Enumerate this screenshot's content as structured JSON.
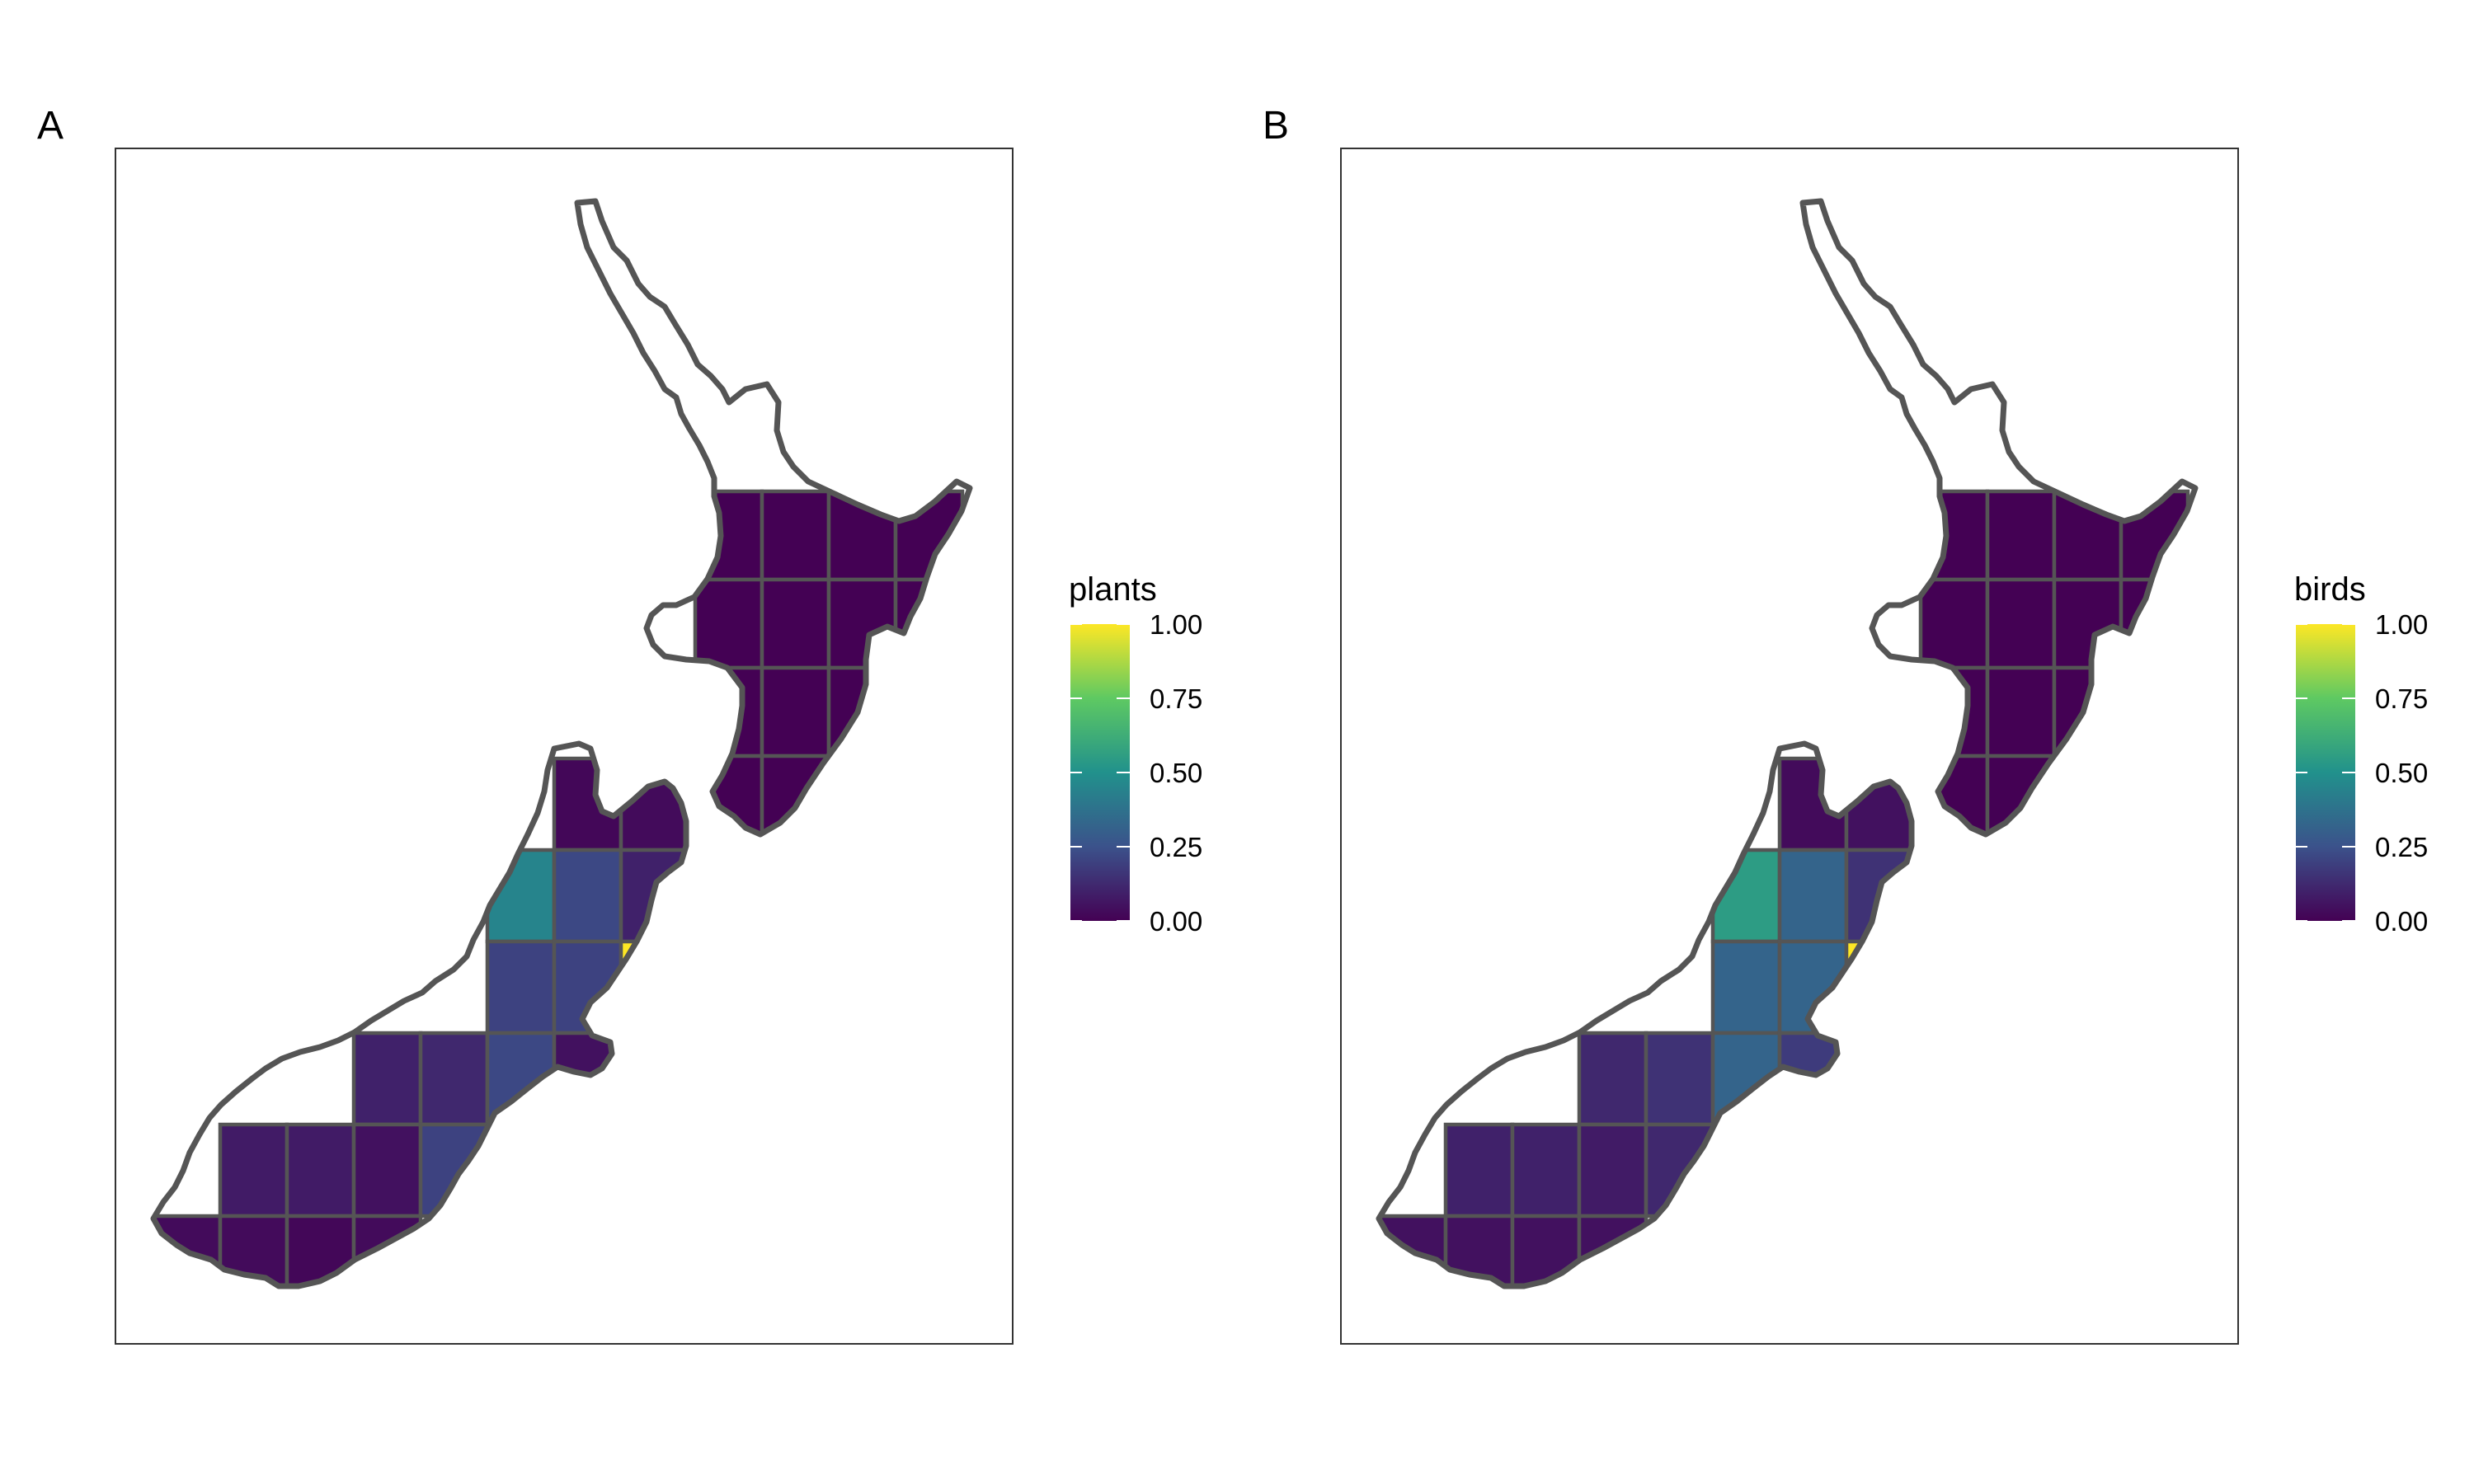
{
  "panels": [
    {
      "tag": "A",
      "legend": {
        "title": "plants",
        "ticks": [
          "1.00",
          "0.75",
          "0.50",
          "0.25",
          "0.00"
        ],
        "tick_values": [
          1.0,
          0.75,
          0.5,
          0.25,
          0.0
        ],
        "colormap": "viridis"
      },
      "cells": [
        {
          "island": "north",
          "row": 0,
          "col": 0,
          "value": 0.0
        },
        {
          "island": "north",
          "row": 0,
          "col": 1,
          "value": 0.0
        },
        {
          "island": "north",
          "row": 0,
          "col": 2,
          "value": 0.0
        },
        {
          "island": "north",
          "row": 0,
          "col": 3,
          "value": 0.0
        },
        {
          "island": "north",
          "row": 1,
          "col": 0,
          "value": 0.0
        },
        {
          "island": "north",
          "row": 1,
          "col": 1,
          "value": 0.0
        },
        {
          "island": "north",
          "row": 1,
          "col": 2,
          "value": 0.0
        },
        {
          "island": "north",
          "row": 1,
          "col": 3,
          "value": 0.0
        },
        {
          "island": "north",
          "row": 2,
          "col": 0,
          "value": 0.0
        },
        {
          "island": "north",
          "row": 2,
          "col": 1,
          "value": 0.0
        },
        {
          "island": "north",
          "row": 2,
          "col": 2,
          "value": 0.0
        },
        {
          "island": "north",
          "row": 3,
          "col": 0,
          "value": 0.0
        },
        {
          "island": "north",
          "row": 3,
          "col": 1,
          "value": 0.0
        },
        {
          "island": "south",
          "row": 0,
          "col": 0,
          "value": 0.02
        },
        {
          "island": "south",
          "row": 0,
          "col": 1,
          "value": 0.03
        },
        {
          "island": "south",
          "row": 1,
          "col": 0,
          "value": 0.45
        },
        {
          "island": "south",
          "row": 1,
          "col": 1,
          "value": 0.22
        },
        {
          "island": "south",
          "row": 1,
          "col": 2,
          "value": 0.1
        },
        {
          "island": "south",
          "row": 2,
          "col": 0,
          "value": 0.2
        },
        {
          "island": "south",
          "row": 2,
          "col": 1,
          "value": 0.2
        },
        {
          "island": "south",
          "row": 2,
          "col": 2,
          "value": 1.0
        },
        {
          "island": "south",
          "row": 3,
          "col": 0,
          "value": 0.1
        },
        {
          "island": "south",
          "row": 3,
          "col": 1,
          "value": 0.12
        },
        {
          "island": "south",
          "row": 3,
          "col": 2,
          "value": 0.22
        },
        {
          "island": "south",
          "row": 3,
          "col": 3,
          "value": 0.05
        },
        {
          "island": "south",
          "row": 4,
          "col": 0,
          "value": 0.08
        },
        {
          "island": "south",
          "row": 4,
          "col": 1,
          "value": 0.08
        },
        {
          "island": "south",
          "row": 4,
          "col": 2,
          "value": 0.05
        },
        {
          "island": "south",
          "row": 4,
          "col": 3,
          "value": 0.2
        },
        {
          "island": "south",
          "row": 5,
          "col": 0,
          "value": 0.03
        },
        {
          "island": "south",
          "row": 5,
          "col": 1,
          "value": 0.03
        },
        {
          "island": "south",
          "row": 5,
          "col": 2,
          "value": 0.02
        },
        {
          "island": "south",
          "row": 5,
          "col": 3,
          "value": 0.03
        },
        {
          "island": "south",
          "row": 6,
          "col": 0,
          "value": 0.02
        },
        {
          "island": "south",
          "row": 6,
          "col": 1,
          "value": 0.02
        },
        {
          "island": "south",
          "row": 6,
          "col": 2,
          "value": 0.03
        }
      ]
    },
    {
      "tag": "B",
      "legend": {
        "title": "birds",
        "ticks": [
          "1.00",
          "0.75",
          "0.50",
          "0.25",
          "0.00"
        ],
        "tick_values": [
          1.0,
          0.75,
          0.5,
          0.25,
          0.0
        ],
        "colormap": "viridis"
      },
      "cells": [
        {
          "island": "north",
          "row": 0,
          "col": 0,
          "value": 0.0
        },
        {
          "island": "north",
          "row": 0,
          "col": 1,
          "value": 0.0
        },
        {
          "island": "north",
          "row": 0,
          "col": 2,
          "value": 0.0
        },
        {
          "island": "north",
          "row": 0,
          "col": 3,
          "value": 0.0
        },
        {
          "island": "north",
          "row": 1,
          "col": 0,
          "value": 0.0
        },
        {
          "island": "north",
          "row": 1,
          "col": 1,
          "value": 0.0
        },
        {
          "island": "north",
          "row": 1,
          "col": 2,
          "value": 0.0
        },
        {
          "island": "north",
          "row": 1,
          "col": 3,
          "value": 0.0
        },
        {
          "island": "north",
          "row": 2,
          "col": 0,
          "value": 0.0
        },
        {
          "island": "north",
          "row": 2,
          "col": 1,
          "value": 0.0
        },
        {
          "island": "north",
          "row": 2,
          "col": 2,
          "value": 0.0
        },
        {
          "island": "north",
          "row": 3,
          "col": 0,
          "value": 0.0
        },
        {
          "island": "north",
          "row": 3,
          "col": 1,
          "value": 0.0
        },
        {
          "island": "south",
          "row": 0,
          "col": 0,
          "value": 0.03
        },
        {
          "island": "south",
          "row": 0,
          "col": 1,
          "value": 0.05
        },
        {
          "island": "south",
          "row": 1,
          "col": 0,
          "value": 0.55
        },
        {
          "island": "south",
          "row": 1,
          "col": 1,
          "value": 0.32
        },
        {
          "island": "south",
          "row": 1,
          "col": 2,
          "value": 0.15
        },
        {
          "island": "south",
          "row": 2,
          "col": 0,
          "value": 0.32
        },
        {
          "island": "south",
          "row": 2,
          "col": 1,
          "value": 0.32
        },
        {
          "island": "south",
          "row": 2,
          "col": 2,
          "value": 1.0
        },
        {
          "island": "south",
          "row": 3,
          "col": 0,
          "value": 0.12
        },
        {
          "island": "south",
          "row": 3,
          "col": 1,
          "value": 0.15
        },
        {
          "island": "south",
          "row": 3,
          "col": 2,
          "value": 0.32
        },
        {
          "island": "south",
          "row": 3,
          "col": 3,
          "value": 0.18
        },
        {
          "island": "south",
          "row": 4,
          "col": 0,
          "value": 0.1
        },
        {
          "island": "south",
          "row": 4,
          "col": 1,
          "value": 0.1
        },
        {
          "island": "south",
          "row": 4,
          "col": 2,
          "value": 0.08
        },
        {
          "island": "south",
          "row": 4,
          "col": 3,
          "value": 0.12
        },
        {
          "island": "south",
          "row": 5,
          "col": 0,
          "value": 0.05
        },
        {
          "island": "south",
          "row": 5,
          "col": 1,
          "value": 0.05
        },
        {
          "island": "south",
          "row": 5,
          "col": 2,
          "value": 0.05
        },
        {
          "island": "south",
          "row": 5,
          "col": 3,
          "value": 0.05
        },
        {
          "island": "south",
          "row": 6,
          "col": 0,
          "value": 0.05
        },
        {
          "island": "south",
          "row": 6,
          "col": 1,
          "value": 0.05
        },
        {
          "island": "south",
          "row": 6,
          "col": 2,
          "value": 0.05
        }
      ]
    }
  ],
  "colors": {
    "viridis_stops": [
      "#440154",
      "#3b528b",
      "#21918c",
      "#5ec962",
      "#fde725"
    ],
    "outline": "#555555",
    "frame": "#333333"
  }
}
